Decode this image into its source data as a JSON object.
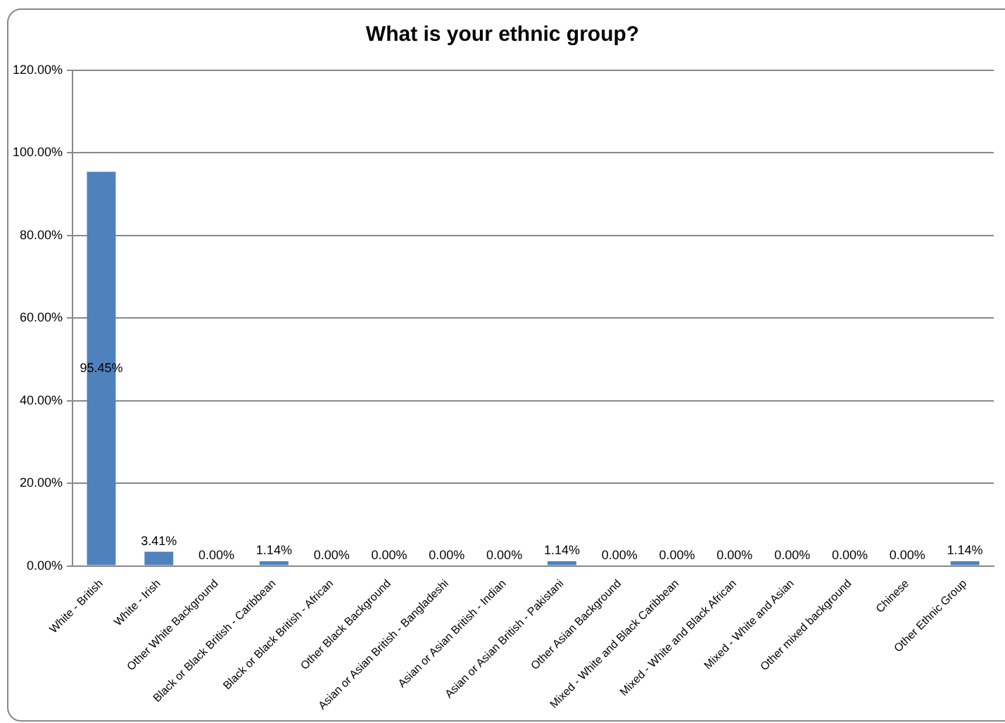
{
  "chart_data": {
    "type": "bar",
    "title": "What is your ethnic group?",
    "categories": [
      "White - British",
      "White - Irish",
      "Other White Background",
      "Black or Black British - Caribbean",
      "Black or Black British - African",
      "Other Black Background",
      "Asian or Asian British - Bangladeshi",
      "Asian or Asian British - Indian",
      "Asian or Asian British - Pakistani",
      "Other Asian Background",
      "Mixed - White and Black Caribbean",
      "Mixed - White and Black African",
      "Mixed - White and Asian",
      "Other mixed background",
      "Chinese",
      "Other Ethnic Group"
    ],
    "values": [
      95.45,
      3.41,
      0,
      1.14,
      0,
      0,
      0,
      0,
      1.14,
      0,
      0,
      0,
      0,
      0,
      0,
      1.14
    ],
    "value_labels": [
      "95.45%",
      "3.41%",
      "0.00%",
      "1.14%",
      "0.00%",
      "0.00%",
      "0.00%",
      "0.00%",
      "1.14%",
      "0.00%",
      "0.00%",
      "0.00%",
      "0.00%",
      "0.00%",
      "0.00%",
      "1.14%"
    ],
    "color": "#4f81bd",
    "ylim": [
      0,
      120
    ],
    "yticks": [
      {
        "value": 0,
        "label": "0.00%"
      },
      {
        "value": 20,
        "label": "20.00%"
      },
      {
        "value": 40,
        "label": "40.00%"
      },
      {
        "value": 60,
        "label": "60.00%"
      },
      {
        "value": 80,
        "label": "80.00%"
      },
      {
        "value": 100,
        "label": "100.00%"
      },
      {
        "value": 120,
        "label": "120.00%"
      }
    ],
    "grid": "y",
    "legend": false
  }
}
